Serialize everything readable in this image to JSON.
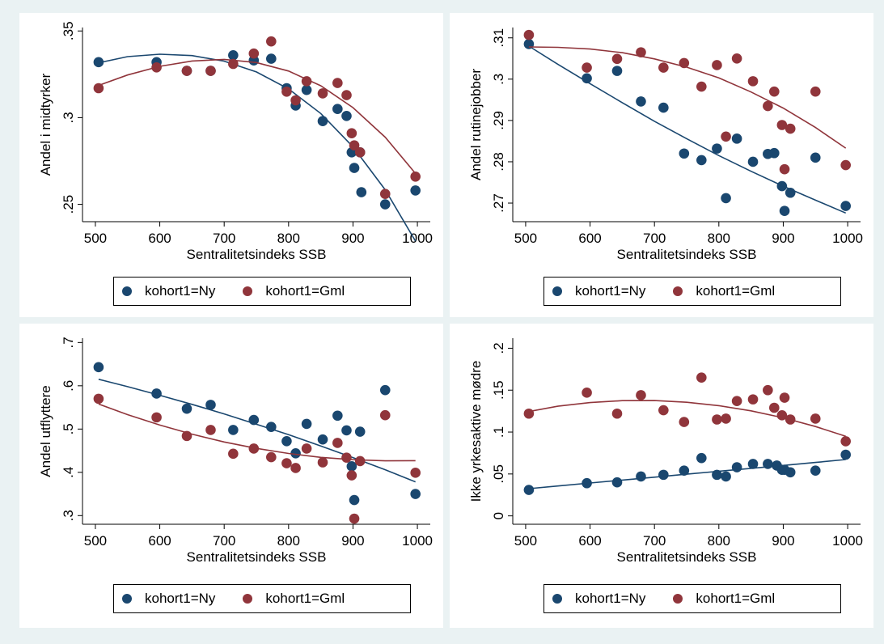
{
  "colors": {
    "ny": "#1a476f",
    "gml": "#90353b",
    "background": "#eaf2f3"
  },
  "chart_data": [
    {
      "type": "scatter",
      "xlabel": "Sentralitetsindeks SSB",
      "ylabel": "Andel i midtyrker",
      "xlim": [
        480,
        1020
      ],
      "xticks": [
        500,
        600,
        700,
        800,
        900,
        1000
      ],
      "xtick_labels": [
        "500",
        "600",
        "700",
        "800",
        "900",
        "1000"
      ],
      "ylim": [
        0.24,
        0.352
      ],
      "yticks": [
        0.25,
        0.3,
        0.35
      ],
      "ytick_labels": [
        ".25",
        ".3",
        ".35"
      ],
      "legend": [
        "kohort1=Ny",
        "kohort1=Gml"
      ],
      "series": [
        {
          "name": "kohort1=Ny",
          "points": [
            [
              505,
              0.332
            ],
            [
              595,
              0.332
            ],
            [
              642,
              0.327
            ],
            [
              679,
              0.327
            ],
            [
              714,
              0.336
            ],
            [
              746,
              0.333
            ],
            [
              773,
              0.334
            ],
            [
              797,
              0.317
            ],
            [
              811,
              0.307
            ],
            [
              828,
              0.316
            ],
            [
              853,
              0.298
            ],
            [
              876,
              0.305
            ],
            [
              890,
              0.301
            ],
            [
              898,
              0.28
            ],
            [
              902,
              0.271
            ],
            [
              911,
              0.28
            ],
            [
              913,
              0.257
            ],
            [
              950,
              0.25
            ],
            [
              997,
              0.258
            ]
          ],
          "fit": [
            [
              505,
              0.3316
            ],
            [
              550,
              0.3352
            ],
            [
              600,
              0.3366
            ],
            [
              650,
              0.3358
            ],
            [
              700,
              0.3326
            ],
            [
              750,
              0.3264
            ],
            [
              800,
              0.3166
            ],
            [
              850,
              0.3024
            ],
            [
              900,
              0.2832
            ],
            [
              950,
              0.2584
            ],
            [
              997,
              0.2288
            ]
          ]
        },
        {
          "name": "kohort1=Gml",
          "points": [
            [
              505,
              0.317
            ],
            [
              595,
              0.329
            ],
            [
              642,
              0.327
            ],
            [
              679,
              0.327
            ],
            [
              714,
              0.331
            ],
            [
              746,
              0.337
            ],
            [
              773,
              0.344
            ],
            [
              797,
              0.315
            ],
            [
              811,
              0.31
            ],
            [
              828,
              0.321
            ],
            [
              853,
              0.314
            ],
            [
              876,
              0.32
            ],
            [
              890,
              0.313
            ],
            [
              898,
              0.291
            ],
            [
              902,
              0.284
            ],
            [
              911,
              0.28
            ],
            [
              950,
              0.256
            ],
            [
              997,
              0.266
            ]
          ],
          "fit": [
            [
              505,
              0.3186
            ],
            [
              550,
              0.3246
            ],
            [
              600,
              0.3296
            ],
            [
              650,
              0.3327
            ],
            [
              700,
              0.3336
            ],
            [
              750,
              0.3318
            ],
            [
              800,
              0.3269
            ],
            [
              850,
              0.3184
            ],
            [
              900,
              0.3058
            ],
            [
              950,
              0.2887
            ],
            [
              997,
              0.2678
            ]
          ]
        }
      ]
    },
    {
      "type": "scatter",
      "xlabel": "Sentralitetsindeks SSB",
      "ylabel": "Andel rutinejobber",
      "xlim": [
        480,
        1020
      ],
      "xticks": [
        500,
        600,
        700,
        800,
        900,
        1000
      ],
      "xtick_labels": [
        "500",
        "600",
        "700",
        "800",
        "900",
        "1000"
      ],
      "ylim": [
        0.2655,
        0.3125
      ],
      "yticks": [
        0.27,
        0.28,
        0.29,
        0.3,
        0.31
      ],
      "ytick_labels": [
        ".27",
        ".28",
        ".29",
        ".3",
        ".31"
      ],
      "legend": [
        "kohort1=Ny",
        "kohort1=Gml"
      ],
      "series": [
        {
          "name": "kohort1=Ny",
          "points": [
            [
              505,
              0.3085
            ],
            [
              595,
              0.3002
            ],
            [
              642,
              0.302
            ],
            [
              679,
              0.2946
            ],
            [
              714,
              0.2931
            ],
            [
              746,
              0.282
            ],
            [
              773,
              0.2804
            ],
            [
              797,
              0.2832
            ],
            [
              811,
              0.2712
            ],
            [
              828,
              0.2856
            ],
            [
              853,
              0.28
            ],
            [
              876,
              0.2819
            ],
            [
              886,
              0.2821
            ],
            [
              898,
              0.2741
            ],
            [
              902,
              0.2681
            ],
            [
              911,
              0.2725
            ],
            [
              950,
              0.281
            ],
            [
              997,
              0.2693
            ]
          ],
          "fit": [
            [
              505,
              0.308
            ],
            [
              550,
              0.3036
            ],
            [
              600,
              0.2989
            ],
            [
              650,
              0.2943
            ],
            [
              700,
              0.2898
            ],
            [
              750,
              0.2856
            ],
            [
              800,
              0.2815
            ],
            [
              850,
              0.2777
            ],
            [
              900,
              0.2741
            ],
            [
              950,
              0.2707
            ],
            [
              997,
              0.2676
            ]
          ]
        },
        {
          "name": "kohort1=Gml",
          "points": [
            [
              505,
              0.3107
            ],
            [
              595,
              0.3028
            ],
            [
              642,
              0.3049
            ],
            [
              679,
              0.3065
            ],
            [
              714,
              0.3028
            ],
            [
              746,
              0.3039
            ],
            [
              773,
              0.2982
            ],
            [
              797,
              0.3034
            ],
            [
              811,
              0.2861
            ],
            [
              828,
              0.305
            ],
            [
              853,
              0.2995
            ],
            [
              876,
              0.2935
            ],
            [
              886,
              0.297
            ],
            [
              898,
              0.2889
            ],
            [
              902,
              0.2782
            ],
            [
              911,
              0.288
            ],
            [
              950,
              0.297
            ],
            [
              997,
              0.2792
            ]
          ],
          "fit": [
            [
              505,
              0.3078
            ],
            [
              550,
              0.3077
            ],
            [
              600,
              0.3073
            ],
            [
              650,
              0.3064
            ],
            [
              700,
              0.3049
            ],
            [
              750,
              0.3029
            ],
            [
              800,
              0.3003
            ],
            [
              850,
              0.2969
            ],
            [
              900,
              0.293
            ],
            [
              950,
              0.2883
            ],
            [
              997,
              0.2833
            ]
          ]
        }
      ]
    },
    {
      "type": "scatter",
      "xlabel": "Sentralitetsindeks SSB",
      "ylabel": "Andel utflyttere",
      "xlim": [
        480,
        1020
      ],
      "xticks": [
        500,
        600,
        700,
        800,
        900,
        1000
      ],
      "xtick_labels": [
        "500",
        "600",
        "700",
        "800",
        "900",
        "1000"
      ],
      "ylim": [
        0.28,
        0.71
      ],
      "yticks": [
        0.3,
        0.4,
        0.5,
        0.6,
        0.7
      ],
      "ytick_labels": [
        ".3",
        ".4",
        ".5",
        ".6",
        ".7"
      ],
      "legend": [
        "kohort1=Ny",
        "kohort1=Gml"
      ],
      "series": [
        {
          "name": "kohort1=Ny",
          "points": [
            [
              505,
              0.643
            ],
            [
              595,
              0.582
            ],
            [
              642,
              0.547
            ],
            [
              679,
              0.556
            ],
            [
              714,
              0.498
            ],
            [
              746,
              0.521
            ],
            [
              773,
              0.505
            ],
            [
              797,
              0.472
            ],
            [
              811,
              0.444
            ],
            [
              828,
              0.512
            ],
            [
              853,
              0.476
            ],
            [
              876,
              0.531
            ],
            [
              890,
              0.497
            ],
            [
              898,
              0.414
            ],
            [
              902,
              0.336
            ],
            [
              911,
              0.494
            ],
            [
              950,
              0.59
            ],
            [
              997,
              0.35
            ]
          ],
          "fit": [
            [
              505,
              0.615
            ],
            [
              550,
              0.598
            ],
            [
              600,
              0.578
            ],
            [
              650,
              0.557
            ],
            [
              700,
              0.535
            ],
            [
              750,
              0.511
            ],
            [
              800,
              0.487
            ],
            [
              850,
              0.461
            ],
            [
              900,
              0.434
            ],
            [
              950,
              0.406
            ],
            [
              997,
              0.378
            ]
          ]
        },
        {
          "name": "kohort1=Gml",
          "points": [
            [
              505,
              0.57
            ],
            [
              595,
              0.527
            ],
            [
              642,
              0.484
            ],
            [
              679,
              0.498
            ],
            [
              714,
              0.443
            ],
            [
              746,
              0.455
            ],
            [
              773,
              0.435
            ],
            [
              797,
              0.421
            ],
            [
              811,
              0.41
            ],
            [
              828,
              0.455
            ],
            [
              853,
              0.423
            ],
            [
              876,
              0.468
            ],
            [
              890,
              0.434
            ],
            [
              898,
              0.393
            ],
            [
              902,
              0.293
            ],
            [
              911,
              0.426
            ],
            [
              950,
              0.532
            ],
            [
              997,
              0.399
            ]
          ],
          "fit": [
            [
              505,
              0.5578
            ],
            [
              550,
              0.5333
            ],
            [
              600,
              0.5092
            ],
            [
              650,
              0.4882
            ],
            [
              700,
              0.4702
            ],
            [
              750,
              0.4553
            ],
            [
              800,
              0.4435
            ],
            [
              850,
              0.4347
            ],
            [
              900,
              0.4291
            ],
            [
              950,
              0.4265
            ],
            [
              997,
              0.4269
            ]
          ]
        }
      ]
    },
    {
      "type": "scatter",
      "xlabel": "Sentralitetsindeks SSB",
      "ylabel": "Ikke yrkesaktive mødre",
      "xlim": [
        480,
        1020
      ],
      "xticks": [
        500,
        600,
        700,
        800,
        900,
        1000
      ],
      "xtick_labels": [
        "500",
        "600",
        "700",
        "800",
        "900",
        "1000"
      ],
      "ylim": [
        -0.01,
        0.212
      ],
      "yticks": [
        0,
        0.05,
        0.1,
        0.15,
        0.2
      ],
      "ytick_labels": [
        "0",
        ".05",
        ".1",
        ".15",
        ".2"
      ],
      "legend": [
        "kohort1=Ny",
        "kohort1=Gml"
      ],
      "series": [
        {
          "name": "kohort1=Ny",
          "points": [
            [
              505,
              0.031
            ],
            [
              595,
              0.039
            ],
            [
              642,
              0.04
            ],
            [
              679,
              0.047
            ],
            [
              714,
              0.049
            ],
            [
              746,
              0.054
            ],
            [
              773,
              0.069
            ],
            [
              797,
              0.049
            ],
            [
              811,
              0.047
            ],
            [
              828,
              0.058
            ],
            [
              853,
              0.062
            ],
            [
              876,
              0.062
            ],
            [
              890,
              0.06
            ],
            [
              898,
              0.055
            ],
            [
              902,
              0.055
            ],
            [
              911,
              0.052
            ],
            [
              950,
              0.054
            ],
            [
              997,
              0.073
            ]
          ],
          "fit": [
            [
              505,
              0.0325
            ],
            [
              550,
              0.0357
            ],
            [
              600,
              0.0392
            ],
            [
              650,
              0.0427
            ],
            [
              700,
              0.0462
            ],
            [
              750,
              0.0497
            ],
            [
              800,
              0.0532
            ],
            [
              850,
              0.0567
            ],
            [
              900,
              0.0602
            ],
            [
              950,
              0.0637
            ],
            [
              997,
              0.0672
            ]
          ]
        },
        {
          "name": "kohort1=Gml",
          "points": [
            [
              505,
              0.122
            ],
            [
              595,
              0.147
            ],
            [
              642,
              0.122
            ],
            [
              679,
              0.144
            ],
            [
              714,
              0.126
            ],
            [
              746,
              0.112
            ],
            [
              773,
              0.165
            ],
            [
              797,
              0.115
            ],
            [
              811,
              0.116
            ],
            [
              828,
              0.137
            ],
            [
              853,
              0.139
            ],
            [
              876,
              0.15
            ],
            [
              886,
              0.129
            ],
            [
              898,
              0.12
            ],
            [
              902,
              0.141
            ],
            [
              911,
              0.115
            ],
            [
              950,
              0.116
            ],
            [
              997,
              0.089
            ]
          ],
          "fit": [
            [
              505,
              0.1245
            ],
            [
              550,
              0.1308
            ],
            [
              600,
              0.1352
            ],
            [
              650,
              0.1375
            ],
            [
              700,
              0.1376
            ],
            [
              750,
              0.1356
            ],
            [
              800,
              0.1315
            ],
            [
              850,
              0.1253
            ],
            [
              900,
              0.117
            ],
            [
              950,
              0.1066
            ],
            [
              997,
              0.0949
            ]
          ]
        }
      ]
    }
  ]
}
